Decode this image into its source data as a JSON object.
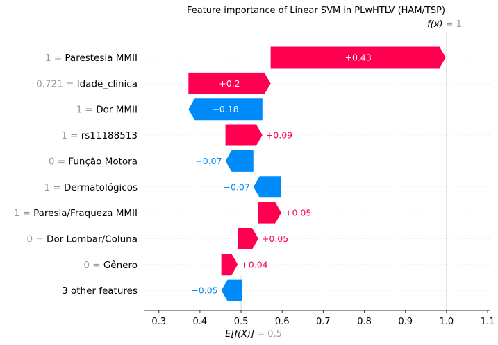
{
  "chart_data": {
    "type": "waterfall",
    "title": "Feature importance of Linear SVM in PLwHTLV (HAM/TSP)",
    "base_value": 0.5,
    "base_label": {
      "func": "E[f(X)]",
      "eq": " = 0.5"
    },
    "output_value": 1.0,
    "output_label": {
      "func": "f(x)",
      "eq": " = 1"
    },
    "xlim": [
      0.265,
      1.105
    ],
    "xticks": [
      0.3,
      0.4,
      0.5,
      0.6,
      0.7,
      0.8,
      0.9,
      1.0,
      1.1
    ],
    "xtick_labels": [
      "0.3",
      "0.4",
      "0.5",
      "0.6",
      "0.7",
      "0.8",
      "0.9",
      "1.0",
      "1.1"
    ],
    "features": [
      {
        "value": "1",
        "name": "Parestesia MMII",
        "contribution": 0.43,
        "label": "+0.43",
        "start": 0.572,
        "end": 0.998
      },
      {
        "value": "0.721",
        "name": "Idade_clinica",
        "contribution": 0.2,
        "label": "+0.2",
        "start": 0.372,
        "end": 0.572
      },
      {
        "value": "1",
        "name": "Dor MMII",
        "contribution": -0.18,
        "label": "−0.18",
        "start": 0.552,
        "end": 0.372
      },
      {
        "value": "1",
        "name": "rs11188513",
        "contribution": 0.09,
        "label": "+0.09",
        "start": 0.462,
        "end": 0.552
      },
      {
        "value": "0",
        "name": "Função Motora",
        "contribution": -0.07,
        "label": "−0.07",
        "start": 0.53,
        "end": 0.462
      },
      {
        "value": "1",
        "name": "Dermatológicos",
        "contribution": -0.07,
        "label": "−0.07",
        "start": 0.598,
        "end": 0.53
      },
      {
        "value": "1",
        "name": "Paresia/Fraqueza MMII",
        "contribution": 0.05,
        "label": "+0.05",
        "start": 0.542,
        "end": 0.598
      },
      {
        "value": "0",
        "name": "Dor Lombar/Coluna",
        "contribution": 0.05,
        "label": "+0.05",
        "start": 0.492,
        "end": 0.542
      },
      {
        "value": "0",
        "name": "Gênero",
        "contribution": 0.04,
        "label": "+0.04",
        "start": 0.452,
        "end": 0.492
      },
      {
        "value": "",
        "name": "3 other features",
        "contribution": -0.05,
        "label": "−0.05",
        "start": 0.502,
        "end": 0.452
      }
    ],
    "colors": {
      "positive": "#ff0051",
      "negative": "#008bfb",
      "muted": "#999999",
      "axis": "#333333",
      "grid": "#e6e6e6"
    }
  }
}
